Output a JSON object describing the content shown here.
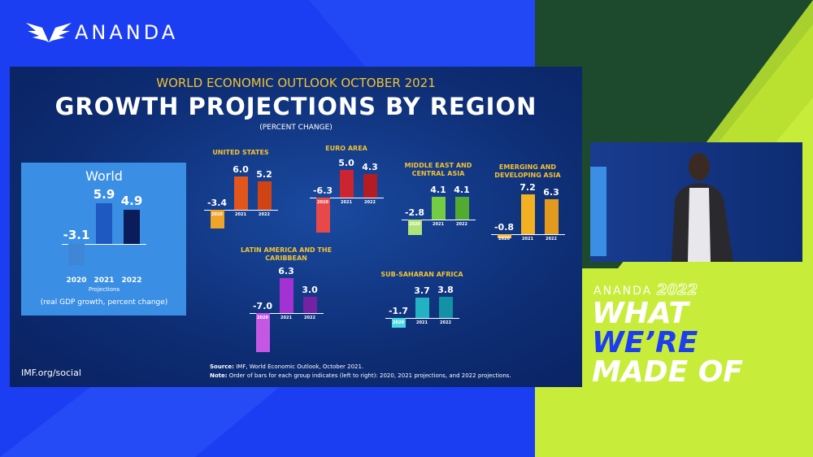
{
  "brand": "ANANDA",
  "slide": {
    "kicker": "WORLD ECONOMIC OUTLOOK OCTOBER 2021",
    "title": "GROWTH PROJECTIONS BY REGION",
    "subtitle": "(PERCENT CHANGE)",
    "source_label": "Source:",
    "source": "IMF, World Economic Outlook, October 2021.",
    "note_label": "Note:",
    "note": "Order of bars for each group indicates (left to right): 2020, 2021 projections, and 2022 projections.",
    "footer": "IMF.org/social"
  },
  "chart_data": [
    {
      "type": "bar",
      "title": "World",
      "categories": [
        "2020",
        "2021",
        "2022"
      ],
      "values": [
        -3.1,
        5.9,
        4.9
      ],
      "colors": [
        "#3f86d6",
        "#1f58c0",
        "#0b1c5a"
      ],
      "annotation": "Projections",
      "caption": "(real GDP growth, percent change)"
    },
    {
      "type": "bar",
      "title": "UNITED STATES",
      "categories": [
        "2020",
        "2021",
        "2022"
      ],
      "values": [
        -3.4,
        6.0,
        5.2
      ],
      "value_labels": [
        "-3.4",
        "6.0",
        "5.2"
      ],
      "colors": [
        "#eea52a",
        "#e2561c",
        "#d04414"
      ]
    },
    {
      "type": "bar",
      "title": "EURO AREA",
      "categories": [
        "2020",
        "2021",
        "2022"
      ],
      "values": [
        -6.3,
        5.0,
        4.3
      ],
      "value_labels": [
        "-6.3",
        "5.0",
        "4.3"
      ],
      "colors": [
        "#e84848",
        "#cc2430",
        "#b21c22"
      ]
    },
    {
      "type": "bar",
      "title": "MIDDLE EAST AND CENTRAL ASIA",
      "categories": [
        "2020",
        "2021",
        "2022"
      ],
      "values": [
        -2.8,
        4.1,
        4.1
      ],
      "colors": [
        "#b0e47a",
        "#74cc44",
        "#52aa30"
      ]
    },
    {
      "type": "bar",
      "title": "EMERGING AND DEVELOPING ASIA",
      "categories": [
        "2020",
        "2021",
        "2022"
      ],
      "values": [
        -0.8,
        7.2,
        6.3
      ],
      "colors": [
        "#f6c050",
        "#f2b022",
        "#e29a1e"
      ]
    },
    {
      "type": "bar",
      "title": "LATIN AMERICA AND THE CARIBBEAN",
      "categories": [
        "2020",
        "2021",
        "2022"
      ],
      "values": [
        -7.0,
        6.3,
        3.0
      ],
      "value_labels": [
        "-7.0",
        "6.3",
        "3.0"
      ],
      "colors": [
        "#c458e4",
        "#a232d2",
        "#7422a4"
      ]
    },
    {
      "type": "bar",
      "title": "SUB-SAHARAN AFRICA",
      "categories": [
        "2020",
        "2021",
        "2022"
      ],
      "values": [
        -1.7,
        3.7,
        3.8
      ],
      "colors": [
        "#48d8e0",
        "#22b2c2",
        "#1292a4"
      ]
    }
  ],
  "event": {
    "brand": "ANANDA",
    "year": "2022",
    "line1": "WHAT",
    "line2": "WE’RE",
    "line3": "MADE OF"
  }
}
